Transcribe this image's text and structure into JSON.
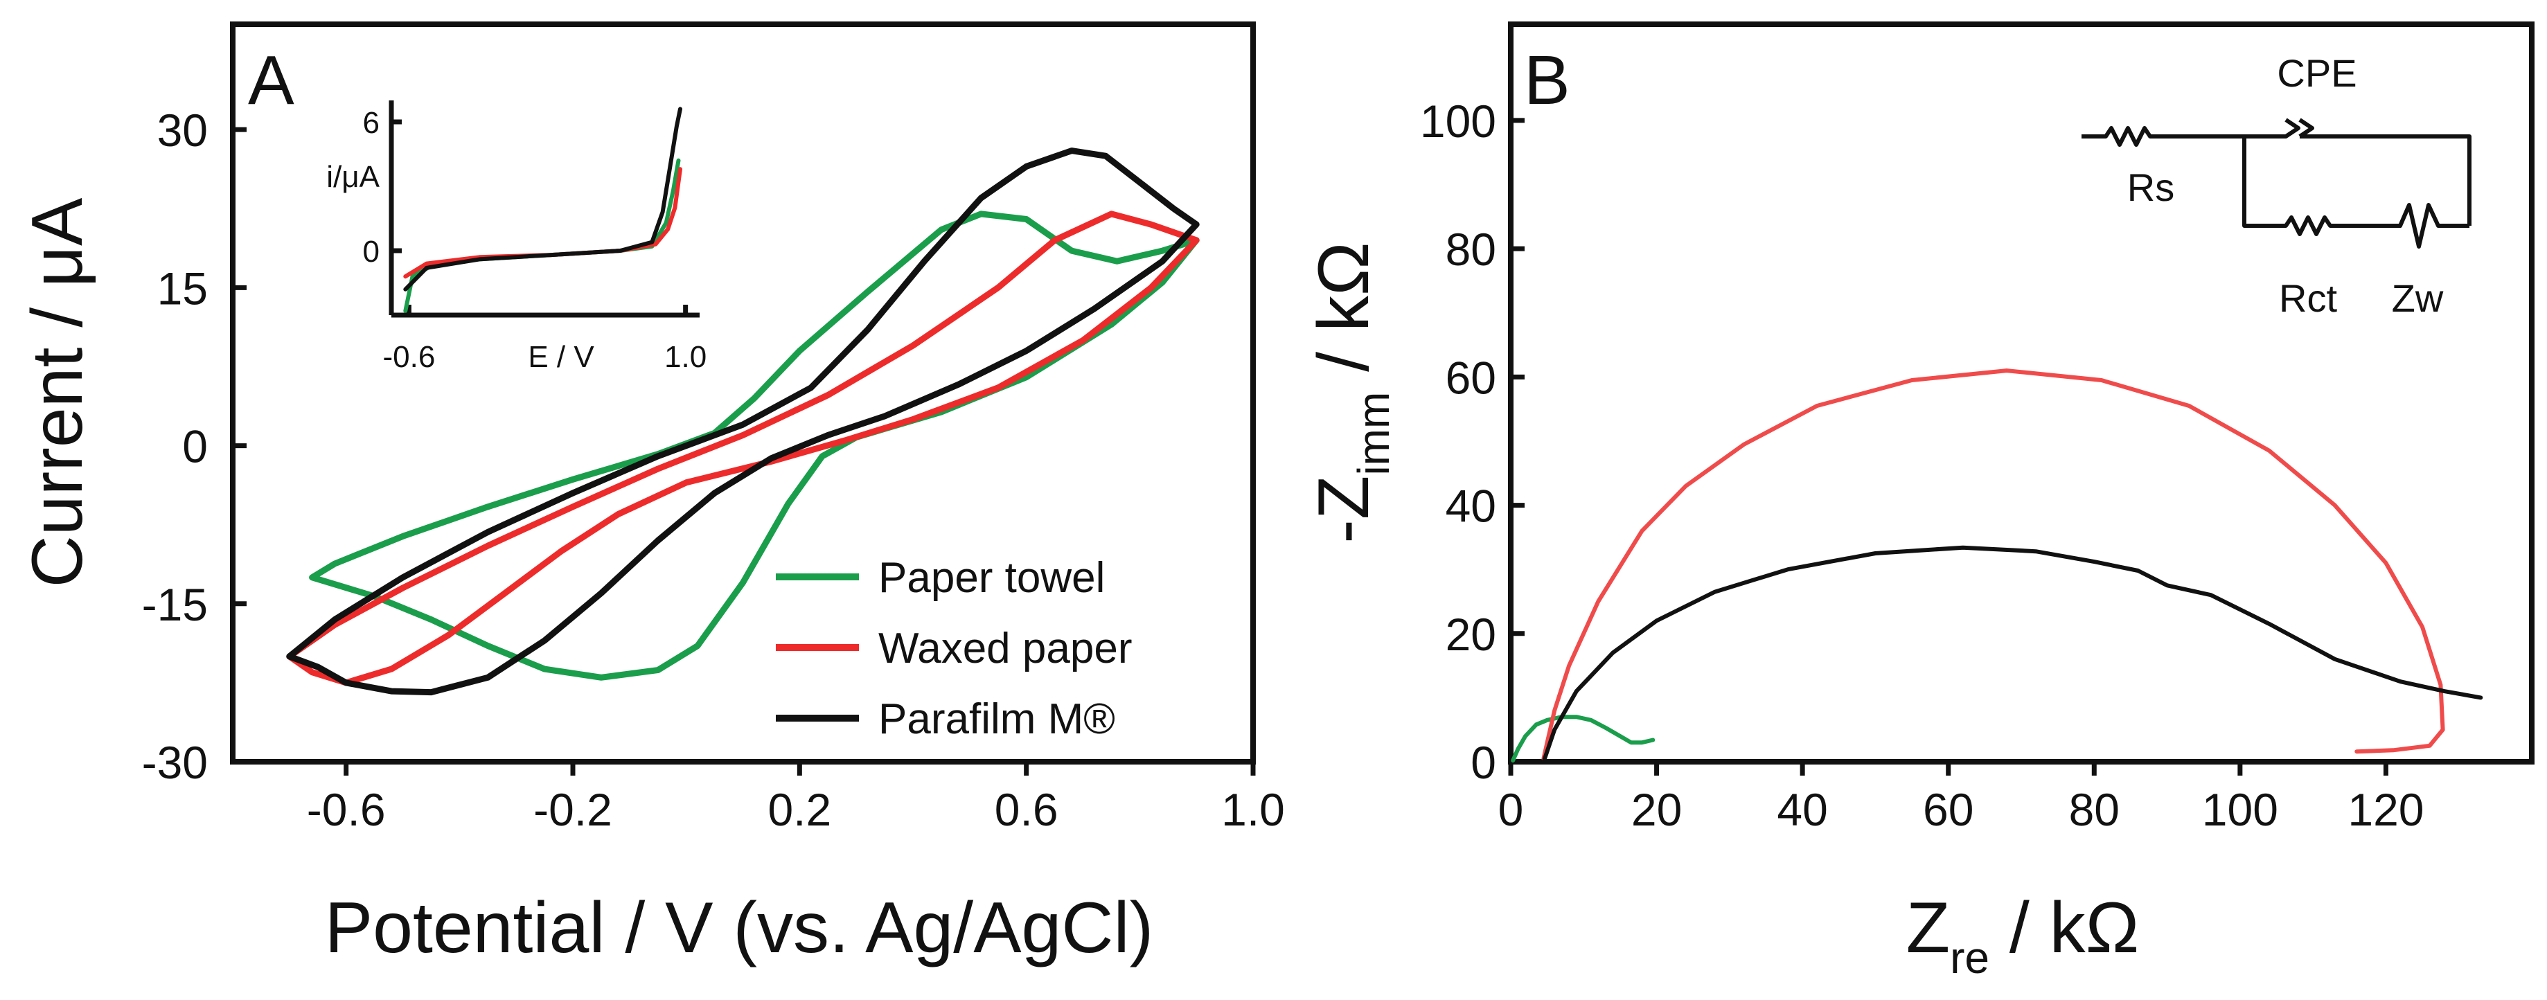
{
  "chart_data": [
    {
      "panel": "A",
      "type": "line",
      "xlabel": "Potential / V (vs. Ag/AgCl)",
      "ylabel": "Current / μA",
      "xlim": [
        -0.8,
        1.0
      ],
      "ylim": [
        -30,
        40
      ],
      "xticks": [
        -0.6,
        -0.2,
        0.2,
        0.6,
        1.0
      ],
      "xtick_labels": [
        "-0.6",
        "-0.2",
        "0.2",
        "0.6",
        "1.0"
      ],
      "yticks": [
        -30,
        -15,
        0,
        15,
        30
      ],
      "ytick_labels": [
        "-30",
        "-15",
        "0",
        "15",
        "30"
      ],
      "legend_position": "bottom-right",
      "series": [
        {
          "name": "Paper towel",
          "color": "#1a9e4b",
          "points": [
            [
              -0.66,
              -12.5
            ],
            [
              -0.62,
              -11.2
            ],
            [
              -0.5,
              -8.6
            ],
            [
              -0.35,
              -5.8
            ],
            [
              -0.2,
              -3.2
            ],
            [
              -0.05,
              -0.8
            ],
            [
              0.05,
              1.2
            ],
            [
              0.12,
              4.5
            ],
            [
              0.2,
              9.0
            ],
            [
              0.32,
              14.6
            ],
            [
              0.45,
              20.5
            ],
            [
              0.52,
              22.0
            ],
            [
              0.6,
              21.5
            ],
            [
              0.68,
              18.5
            ],
            [
              0.76,
              17.5
            ],
            [
              0.84,
              18.5
            ],
            [
              0.9,
              19.5
            ],
            [
              0.84,
              15.5
            ],
            [
              0.75,
              11.5
            ],
            [
              0.6,
              6.5
            ],
            [
              0.45,
              3.2
            ],
            [
              0.3,
              0.8
            ],
            [
              0.24,
              -1.0
            ],
            [
              0.18,
              -5.5
            ],
            [
              0.1,
              -13.0
            ],
            [
              0.02,
              -19.0
            ],
            [
              -0.05,
              -21.3
            ],
            [
              -0.15,
              -22.0
            ],
            [
              -0.25,
              -21.2
            ],
            [
              -0.35,
              -19.0
            ],
            [
              -0.45,
              -16.5
            ],
            [
              -0.55,
              -14.3
            ],
            [
              -0.66,
              -12.5
            ]
          ]
        },
        {
          "name": "Waxed paper",
          "color": "#ee2b2b",
          "points": [
            [
              -0.7,
              -20.0
            ],
            [
              -0.62,
              -17.0
            ],
            [
              -0.5,
              -13.5
            ],
            [
              -0.35,
              -9.5
            ],
            [
              -0.2,
              -5.8
            ],
            [
              -0.05,
              -2.2
            ],
            [
              0.1,
              1.0
            ],
            [
              0.25,
              4.8
            ],
            [
              0.4,
              9.5
            ],
            [
              0.55,
              15.0
            ],
            [
              0.65,
              19.5
            ],
            [
              0.75,
              22.0
            ],
            [
              0.82,
              21.0
            ],
            [
              0.9,
              19.5
            ],
            [
              0.82,
              15.0
            ],
            [
              0.7,
              10.0
            ],
            [
              0.55,
              5.5
            ],
            [
              0.4,
              2.5
            ],
            [
              0.28,
              0.5
            ],
            [
              0.15,
              -1.5
            ],
            [
              0.0,
              -3.5
            ],
            [
              -0.12,
              -6.5
            ],
            [
              -0.22,
              -10.0
            ],
            [
              -0.32,
              -14.0
            ],
            [
              -0.42,
              -18.0
            ],
            [
              -0.52,
              -21.2
            ],
            [
              -0.6,
              -22.5
            ],
            [
              -0.66,
              -21.5
            ],
            [
              -0.7,
              -20.0
            ]
          ]
        },
        {
          "name": "Parafilm M®",
          "color": "#111111",
          "points": [
            [
              -0.7,
              -20.0
            ],
            [
              -0.62,
              -16.5
            ],
            [
              -0.5,
              -12.5
            ],
            [
              -0.35,
              -8.2
            ],
            [
              -0.2,
              -4.5
            ],
            [
              -0.05,
              -1.0
            ],
            [
              0.1,
              2.0
            ],
            [
              0.22,
              5.5
            ],
            [
              0.32,
              11.0
            ],
            [
              0.42,
              17.5
            ],
            [
              0.52,
              23.5
            ],
            [
              0.6,
              26.5
            ],
            [
              0.68,
              28.0
            ],
            [
              0.74,
              27.5
            ],
            [
              0.8,
              25.0
            ],
            [
              0.86,
              22.5
            ],
            [
              0.9,
              21.0
            ],
            [
              0.84,
              17.5
            ],
            [
              0.72,
              13.0
            ],
            [
              0.6,
              9.0
            ],
            [
              0.48,
              5.8
            ],
            [
              0.35,
              2.8
            ],
            [
              0.25,
              1.0
            ],
            [
              0.15,
              -1.2
            ],
            [
              0.05,
              -4.5
            ],
            [
              -0.05,
              -9.0
            ],
            [
              -0.15,
              -14.0
            ],
            [
              -0.25,
              -18.5
            ],
            [
              -0.35,
              -22.0
            ],
            [
              -0.45,
              -23.4
            ],
            [
              -0.52,
              -23.3
            ],
            [
              -0.6,
              -22.5
            ],
            [
              -0.65,
              -21.0
            ],
            [
              -0.7,
              -20.0
            ]
          ]
        }
      ],
      "inset": {
        "type": "line",
        "xlabel": "E / V",
        "ylabel": "i/μA",
        "xlim": [
          -0.7,
          1.05
        ],
        "ylim": [
          -3,
          7
        ],
        "xtick_labels": [
          "-0.6",
          "1.0"
        ],
        "ytick_labels": [
          "0",
          "6"
        ],
        "series": [
          {
            "name": "Paper towel",
            "color": "#1a9e4b",
            "points": [
              [
                -0.62,
                -2.8
              ],
              [
                -0.58,
                -1.2
              ],
              [
                -0.45,
                -0.6
              ],
              [
                -0.2,
                -0.4
              ],
              [
                0.2,
                -0.2
              ],
              [
                0.6,
                0.0
              ],
              [
                0.78,
                0.2
              ],
              [
                0.86,
                1.3
              ],
              [
                0.9,
                2.8
              ],
              [
                0.93,
                4.2
              ]
            ]
          },
          {
            "name": "Waxed paper",
            "color": "#ee2b2b",
            "points": [
              [
                -0.62,
                -1.2
              ],
              [
                -0.5,
                -0.6
              ],
              [
                -0.2,
                -0.3
              ],
              [
                0.2,
                -0.2
              ],
              [
                0.6,
                0.0
              ],
              [
                0.8,
                0.3
              ],
              [
                0.87,
                1.0
              ],
              [
                0.91,
                2.0
              ],
              [
                0.94,
                3.8
              ]
            ]
          },
          {
            "name": "Parafilm M®",
            "color": "#111111",
            "points": [
              [
                -0.62,
                -1.8
              ],
              [
                -0.5,
                -0.8
              ],
              [
                -0.2,
                -0.4
              ],
              [
                0.2,
                -0.2
              ],
              [
                0.6,
                0.0
              ],
              [
                0.78,
                0.4
              ],
              [
                0.84,
                1.8
              ],
              [
                0.88,
                3.8
              ],
              [
                0.92,
                5.8
              ],
              [
                0.94,
                6.6
              ]
            ]
          }
        ]
      }
    },
    {
      "panel": "B",
      "type": "line",
      "xlabel_main": "Z",
      "xlabel_sub": "re",
      "xlabel_unit": " / kΩ",
      "ylabel_main": "-Z",
      "ylabel_sub": "imm",
      "ylabel_unit": " / kΩ",
      "xlim": [
        0,
        140
      ],
      "ylim": [
        0,
        115
      ],
      "xticks": [
        0,
        20,
        40,
        60,
        80,
        100,
        120
      ],
      "xtick_labels": [
        "0",
        "20",
        "40",
        "60",
        "80",
        "100",
        "120"
      ],
      "yticks": [
        0,
        20,
        40,
        60,
        80,
        100
      ],
      "ytick_labels": [
        "0",
        "20",
        "40",
        "60",
        "80",
        "100"
      ],
      "series": [
        {
          "name": "Paper towel",
          "color": "#1a9e4b",
          "points": [
            [
              0.3,
              0.2
            ],
            [
              1,
              2.0
            ],
            [
              2,
              4.0
            ],
            [
              3.5,
              5.8
            ],
            [
              5,
              6.5
            ],
            [
              7,
              7.0
            ],
            [
              9,
              7.0
            ],
            [
              11,
              6.5
            ],
            [
              13,
              5.3
            ],
            [
              15,
              4.0
            ],
            [
              16.5,
              3.0
            ],
            [
              18,
              3.0
            ],
            [
              19.5,
              3.4
            ]
          ]
        },
        {
          "name": "Waxed paper",
          "color": "#f04b4b",
          "points": [
            [
              4.5,
              0.5
            ],
            [
              5,
              3
            ],
            [
              6,
              8
            ],
            [
              8,
              15
            ],
            [
              12,
              25
            ],
            [
              18,
              36
            ],
            [
              24,
              43
            ],
            [
              32,
              49.5
            ],
            [
              42,
              55.5
            ],
            [
              55,
              59.5
            ],
            [
              68,
              61
            ],
            [
              81,
              59.5
            ],
            [
              93,
              55.5
            ],
            [
              104,
              48.5
            ],
            [
              113,
              40
            ],
            [
              120,
              31
            ],
            [
              125,
              21
            ],
            [
              127.5,
              12
            ],
            [
              127.8,
              5
            ],
            [
              126,
              2.5
            ],
            [
              121,
              1.8
            ],
            [
              116,
              1.6
            ]
          ]
        },
        {
          "name": "Parafilm M®",
          "color": "#111111",
          "points": [
            [
              4.6,
              0.3
            ],
            [
              6,
              5
            ],
            [
              9,
              11
            ],
            [
              14,
              17
            ],
            [
              20,
              22
            ],
            [
              28,
              26.5
            ],
            [
              38,
              30
            ],
            [
              50,
              32.5
            ],
            [
              62,
              33.4
            ],
            [
              72,
              32.8
            ],
            [
              80,
              31.2
            ],
            [
              86,
              29.8
            ],
            [
              90,
              27.5
            ],
            [
              96,
              26
            ],
            [
              104,
              21.5
            ],
            [
              113,
              16
            ],
            [
              122,
              12.5
            ],
            [
              128,
              11
            ],
            [
              133,
              10
            ]
          ]
        }
      ],
      "circuit_labels": {
        "rs": "Rs",
        "cpe": "CPE",
        "rct": "Rct",
        "zw": "Zw"
      }
    }
  ],
  "panel_a_letter": "A",
  "panel_b_letter": "B"
}
